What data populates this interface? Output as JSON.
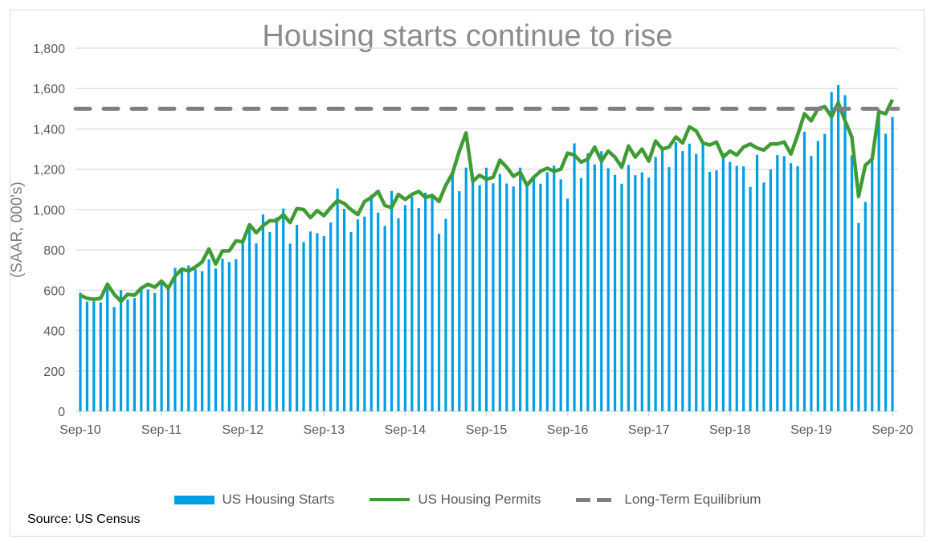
{
  "chart_data": {
    "type": "bar",
    "title": "Housing starts continue to rise",
    "ylabel": "(SAAR, 000's)",
    "xlabel": "",
    "ylim": [
      0,
      1800
    ],
    "yticks": [
      "0",
      "200",
      "400",
      "600",
      "800",
      "1,000",
      "1,200",
      "1,400",
      "1,600",
      "1,800"
    ],
    "xticks": [
      "Sep-10",
      "Sep-11",
      "Sep-12",
      "Sep-13",
      "Sep-14",
      "Sep-15",
      "Sep-16",
      "Sep-17",
      "Sep-18",
      "Sep-19",
      "Sep-20"
    ],
    "x_start": "Sep-10",
    "x_end": "Sep-20",
    "frequency": "monthly",
    "grid": true,
    "legend_position": "bottom",
    "series": [
      {
        "name": "US Housing Starts",
        "type": "bar",
        "color": "#009fe3",
        "values": [
          588,
          543,
          545,
          539,
          630,
          517,
          600,
          554,
          561,
          608,
          604,
          586,
          650,
          610,
          711,
          694,
          723,
          704,
          695,
          753,
          708,
          757,
          740,
          754,
          847,
          915,
          833,
          976,
          888,
          962,
          1005,
          831,
          924,
          839,
          891,
          883,
          868,
          936,
          1105,
          1003,
          888,
          951,
          965,
          1074,
          985,
          919,
          1092,
          957,
          1022,
          1064,
          1007,
          1084,
          1076,
          880,
          954,
          1186,
          1091,
          1208,
          1161,
          1121,
          1208,
          1130,
          1177,
          1129,
          1114,
          1208,
          1113,
          1155,
          1128,
          1186,
          1218,
          1150,
          1054,
          1328,
          1156,
          1280,
          1224,
          1289,
          1205,
          1172,
          1128,
          1221,
          1170,
          1185,
          1159,
          1261,
          1303,
          1210,
          1334,
          1290,
          1327,
          1276,
          1329,
          1187,
          1194,
          1280,
          1236,
          1217,
          1214,
          1112,
          1271,
          1134,
          1199,
          1270,
          1265,
          1230,
          1215,
          1386,
          1266,
          1340,
          1375,
          1583,
          1617,
          1567,
          1269,
          934,
          1038,
          1265,
          1497,
          1376,
          1459
        ]
      },
      {
        "name": "US Housing Permits",
        "type": "line",
        "color": "#3f9c35",
        "values": [
          575,
          560,
          555,
          560,
          630,
          580,
          545,
          580,
          575,
          610,
          630,
          615,
          645,
          610,
          670,
          705,
          695,
          715,
          740,
          805,
          730,
          795,
          795,
          845,
          840,
          925,
          885,
          920,
          945,
          945,
          975,
          935,
          1005,
          1000,
          960,
          995,
          970,
          1010,
          1045,
          1030,
          1000,
          975,
          1040,
          1060,
          1090,
          1020,
          1010,
          1075,
          1050,
          1075,
          1090,
          1060,
          1070,
          1040,
          1120,
          1180,
          1290,
          1380,
          1140,
          1170,
          1150,
          1160,
          1245,
          1210,
          1165,
          1185,
          1120,
          1160,
          1190,
          1205,
          1190,
          1200,
          1280,
          1270,
          1235,
          1250,
          1310,
          1240,
          1290,
          1260,
          1210,
          1315,
          1260,
          1300,
          1240,
          1340,
          1300,
          1310,
          1360,
          1330,
          1410,
          1390,
          1330,
          1320,
          1335,
          1260,
          1290,
          1270,
          1310,
          1325,
          1305,
          1295,
          1325,
          1325,
          1335,
          1275,
          1370,
          1475,
          1440,
          1500,
          1510,
          1460,
          1530,
          1440,
          1360,
          1065,
          1220,
          1250,
          1485,
          1475,
          1545
        ]
      },
      {
        "name": "Long-Term Equilibrium",
        "type": "line-dashed",
        "color": "#7f7f7f",
        "value": 1500
      }
    ]
  },
  "source": "Source: US Census"
}
